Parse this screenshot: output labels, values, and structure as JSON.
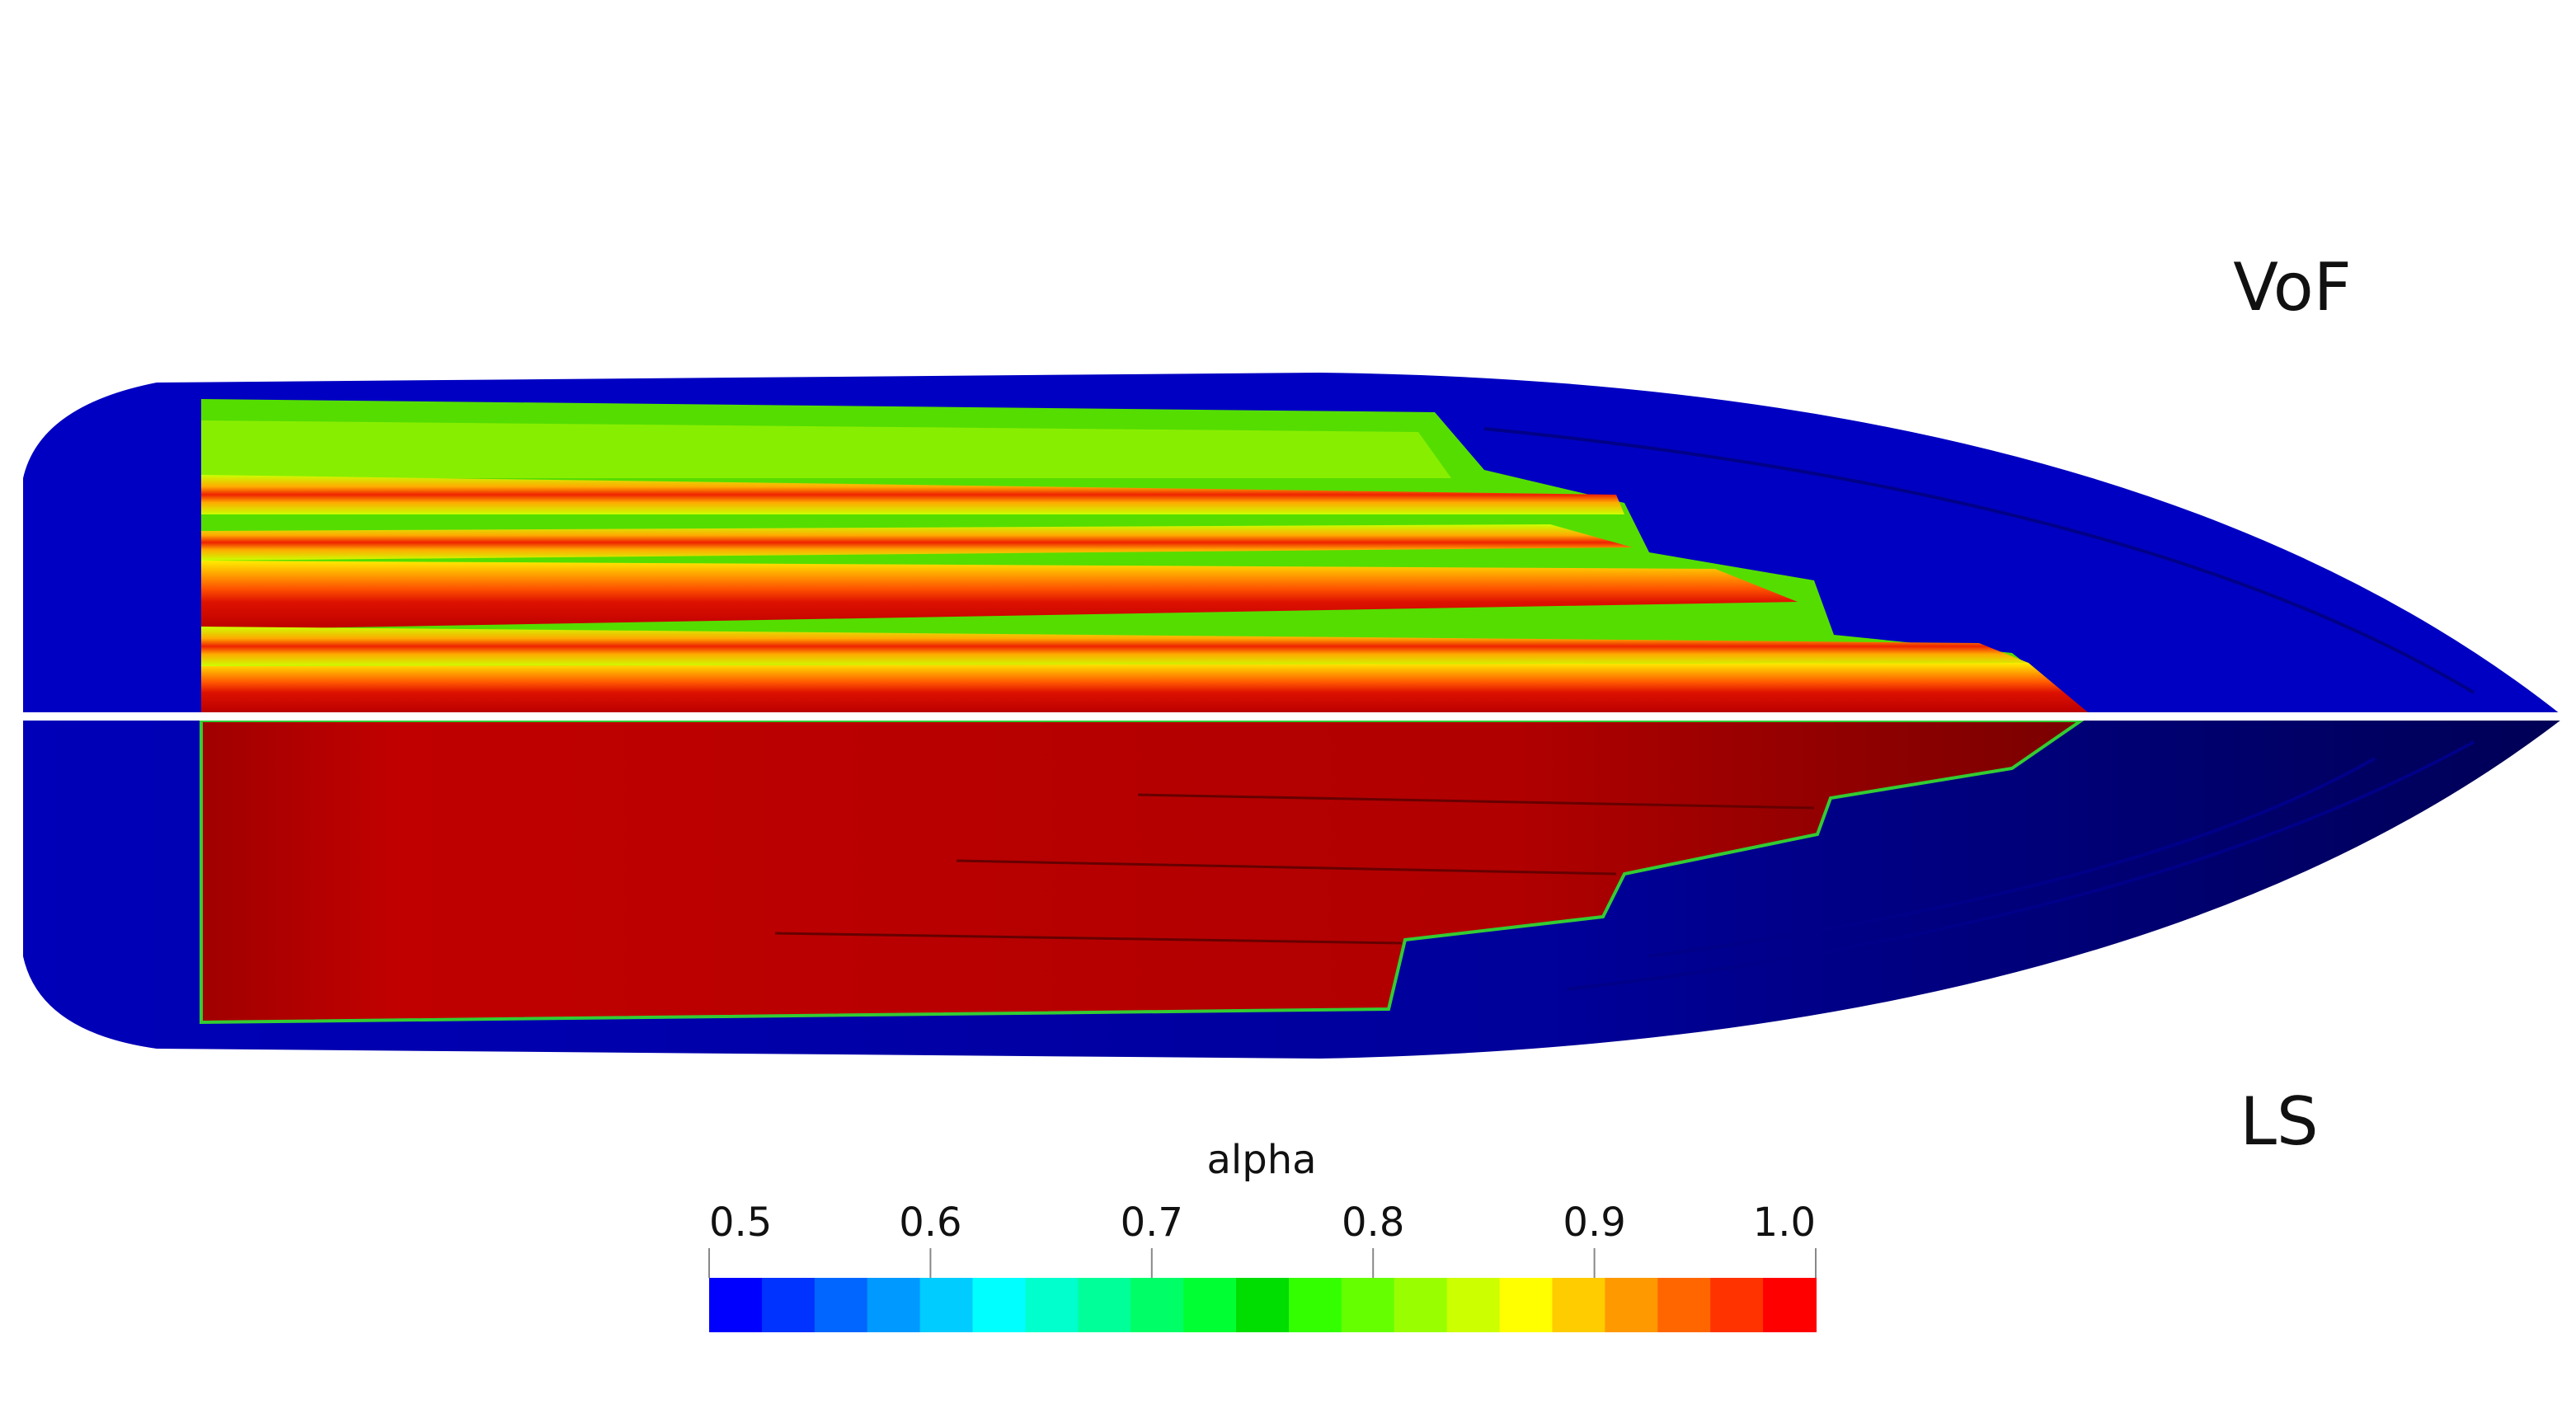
{
  "labels": {
    "top": "VoF",
    "bottom": "LS"
  },
  "colorbar": {
    "title": "alpha",
    "clim": [
      0.5,
      1
    ],
    "ticks": [
      0.5,
      0.6,
      0.7,
      0.8,
      0.9,
      {
        "value": 1,
        "label": "1.0"
      }
    ],
    "colors": [
      "#0000ff",
      "#0033ff",
      "#0066ff",
      "#0099ff",
      "#00ccff",
      "#00ffff",
      "#00ffcc",
      "#00ff99",
      "#00ff66",
      "#00ff33",
      "#00dd00",
      "#33ff00",
      "#66ff00",
      "#99ff00",
      "#ccff00",
      "#ffff00",
      "#ffcc00",
      "#ff9900",
      "#ff6600",
      "#ff3300",
      "#ff0000"
    ]
  }
}
